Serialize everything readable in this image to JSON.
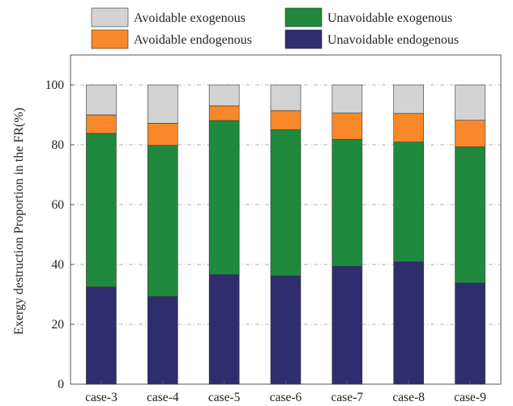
{
  "chart_data": {
    "type": "bar",
    "stacked": true,
    "title": "",
    "xlabel": "",
    "ylabel": "Exergy destruction Proportion in the FR(%)",
    "ylim": [
      0,
      110
    ],
    "yticks": [
      0,
      20,
      40,
      60,
      80,
      100
    ],
    "grid": "horizontal dash-dot",
    "legend_position": "top",
    "categories": [
      "case-3",
      "case-4",
      "case-5",
      "case-6",
      "case-7",
      "case-8",
      "case-9"
    ],
    "series": [
      {
        "name": "Unavoidable endogenous",
        "color": "#2f2d6e",
        "values": [
          32.5,
          29.3,
          36.6,
          36.2,
          39.4,
          40.9,
          33.8
        ]
      },
      {
        "name": "Unavoidable exogenous",
        "color": "#1f8a3e",
        "values": [
          51.3,
          50.5,
          51.5,
          48.8,
          42.4,
          40.0,
          45.5
        ]
      },
      {
        "name": "Avoidable endogenous",
        "color": "#f7892a",
        "values": [
          6.2,
          7.4,
          4.9,
          6.4,
          8.8,
          9.6,
          8.9
        ]
      },
      {
        "name": "Avoidable exogenous",
        "color": "#d3d3d3",
        "values": [
          10.0,
          12.8,
          7.0,
          8.6,
          9.4,
          9.5,
          11.8
        ]
      }
    ],
    "legend_order": [
      "Avoidable exogenous",
      "Unavoidable exogenous",
      "Avoidable endogenous",
      "Unavoidable endogenous"
    ]
  }
}
